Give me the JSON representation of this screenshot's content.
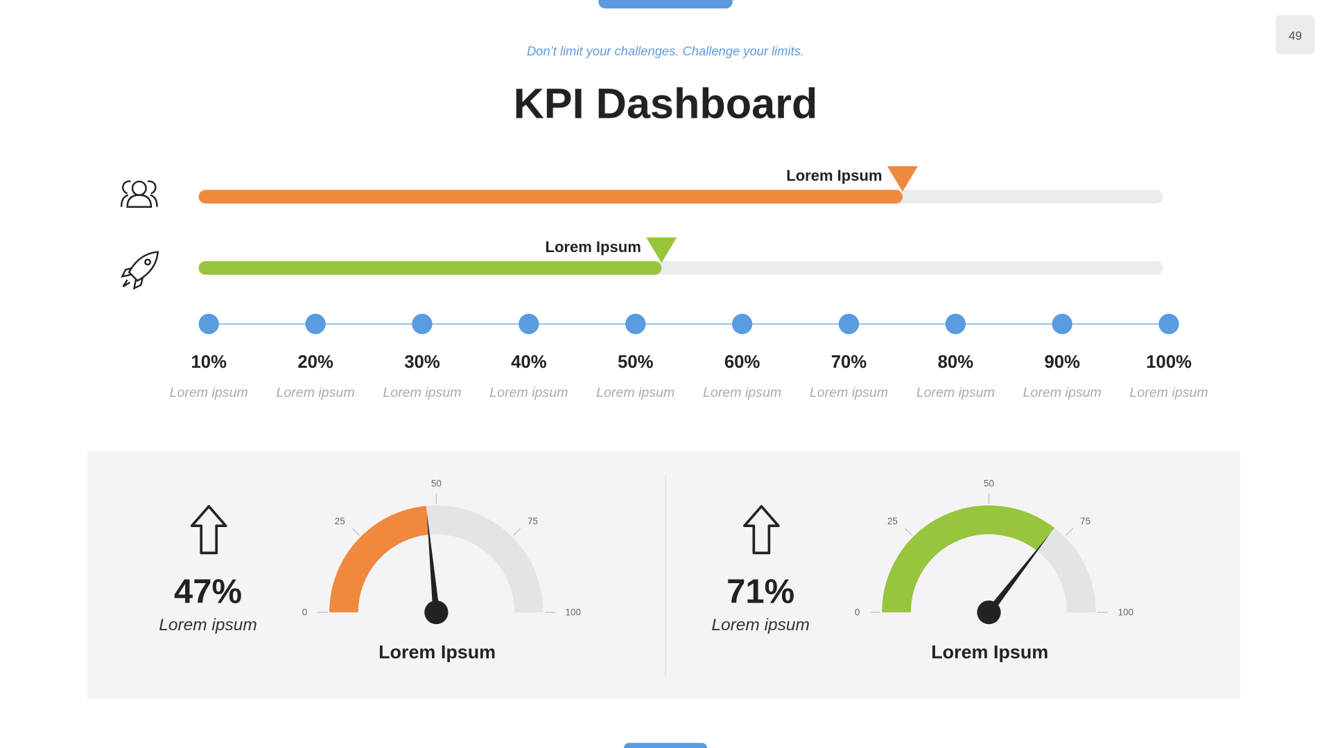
{
  "page_number": "49",
  "header": {
    "tagline": "Don’t limit your challenges. Challenge your limits.",
    "title": "KPI Dashboard"
  },
  "bar_range": [
    0,
    100
  ],
  "bars": [
    {
      "label": "Lorem Ipsum",
      "value": 73,
      "color": "#f0883e"
    },
    {
      "label": "Lorem Ipsum",
      "value": 48,
      "color": "#97c53d"
    }
  ],
  "scale": {
    "color": "#5b9be0",
    "steps": [
      {
        "value": 10,
        "label": "10%",
        "caption": "Lorem ipsum"
      },
      {
        "value": 20,
        "label": "20%",
        "caption": "Lorem ipsum"
      },
      {
        "value": 30,
        "label": "30%",
        "caption": "Lorem ipsum"
      },
      {
        "value": 40,
        "label": "40%",
        "caption": "Lorem ipsum"
      },
      {
        "value": 50,
        "label": "50%",
        "caption": "Lorem ipsum"
      },
      {
        "value": 60,
        "label": "60%",
        "caption": "Lorem ipsum"
      },
      {
        "value": 70,
        "label": "70%",
        "caption": "Lorem ipsum"
      },
      {
        "value": 80,
        "label": "80%",
        "caption": "Lorem ipsum"
      },
      {
        "value": 90,
        "label": "90%",
        "caption": "Lorem ipsum"
      },
      {
        "value": 100,
        "label": "100%",
        "caption": "Lorem ipsum"
      }
    ]
  },
  "gauge_range": [
    0,
    100
  ],
  "gauge_ticks": [
    0,
    25,
    50,
    75,
    100
  ],
  "gauges": [
    {
      "value": 47,
      "label": "47%",
      "caption": "Lorem ipsum",
      "title": "Lorem Ipsum",
      "color": "#f0883e"
    },
    {
      "value": 71,
      "label": "71%",
      "caption": "Lorem ipsum",
      "title": "Lorem Ipsum",
      "color": "#97c53d"
    }
  ]
}
